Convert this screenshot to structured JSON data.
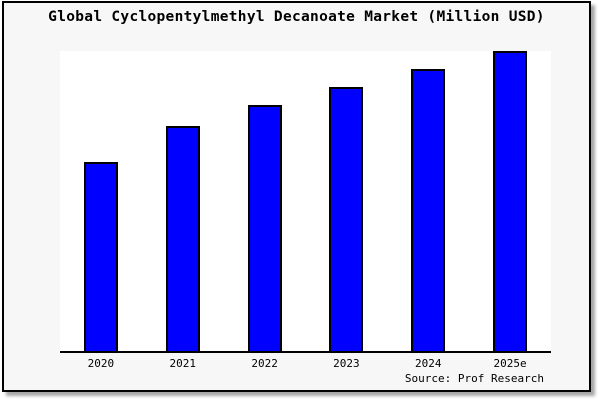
{
  "colors": {
    "bar_fill": "#0000ff",
    "bar_border": "#000000",
    "canvas_background": "#f7f7f7",
    "plot_background": "#ffffff",
    "axis_line": "#000000",
    "frame_border": "#000000"
  },
  "chart_data": {
    "type": "bar",
    "title": "Global Cyclopentylmethyl Decanoate Market (Million USD)",
    "categories": [
      "2020",
      "2021",
      "2022",
      "2023",
      "2024",
      "2025e"
    ],
    "values": [
      63,
      75,
      82,
      88,
      94,
      100
    ],
    "value_note": "no y-axis ticks or gridlines shown; values estimated as percent of tallest bar (2025e = 100)",
    "xlabel": "",
    "ylabel": "",
    "ylim": [
      0,
      100
    ],
    "grid": false,
    "legend_position": "none",
    "annotations": [
      "Source: Prof Research"
    ]
  }
}
